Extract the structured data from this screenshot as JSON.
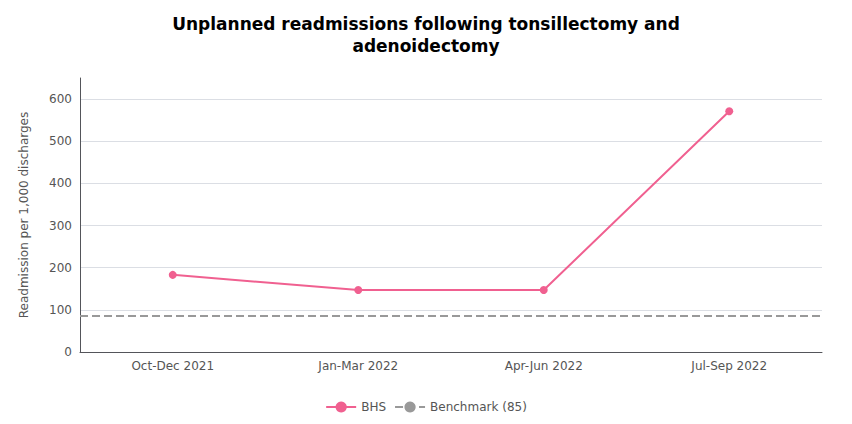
{
  "chart_data": {
    "type": "line",
    "title": "Unplanned readmissions following tonsillectomy and\nadenoidectomy",
    "y_label": "Readmission per 1,000 discharges",
    "categories": [
      "Oct-Dec 2021",
      "Jan-Mar 2022",
      "Apr-Jun 2022",
      "Jul-Sep 2022"
    ],
    "series": [
      {
        "name": "BHS",
        "type": "line",
        "color": "#f06090",
        "values": [
          183,
          147,
          147,
          571
        ],
        "marker": "circle",
        "line_style": "solid"
      },
      {
        "name": "Benchmark (85)",
        "type": "hline",
        "color": "#999999",
        "value": 85,
        "line_style": "dashed"
      }
    ],
    "ylim": [
      0,
      650
    ],
    "yticks": [
      0,
      100,
      200,
      300,
      400,
      500,
      600
    ],
    "grid": true,
    "legend": "bottom"
  }
}
